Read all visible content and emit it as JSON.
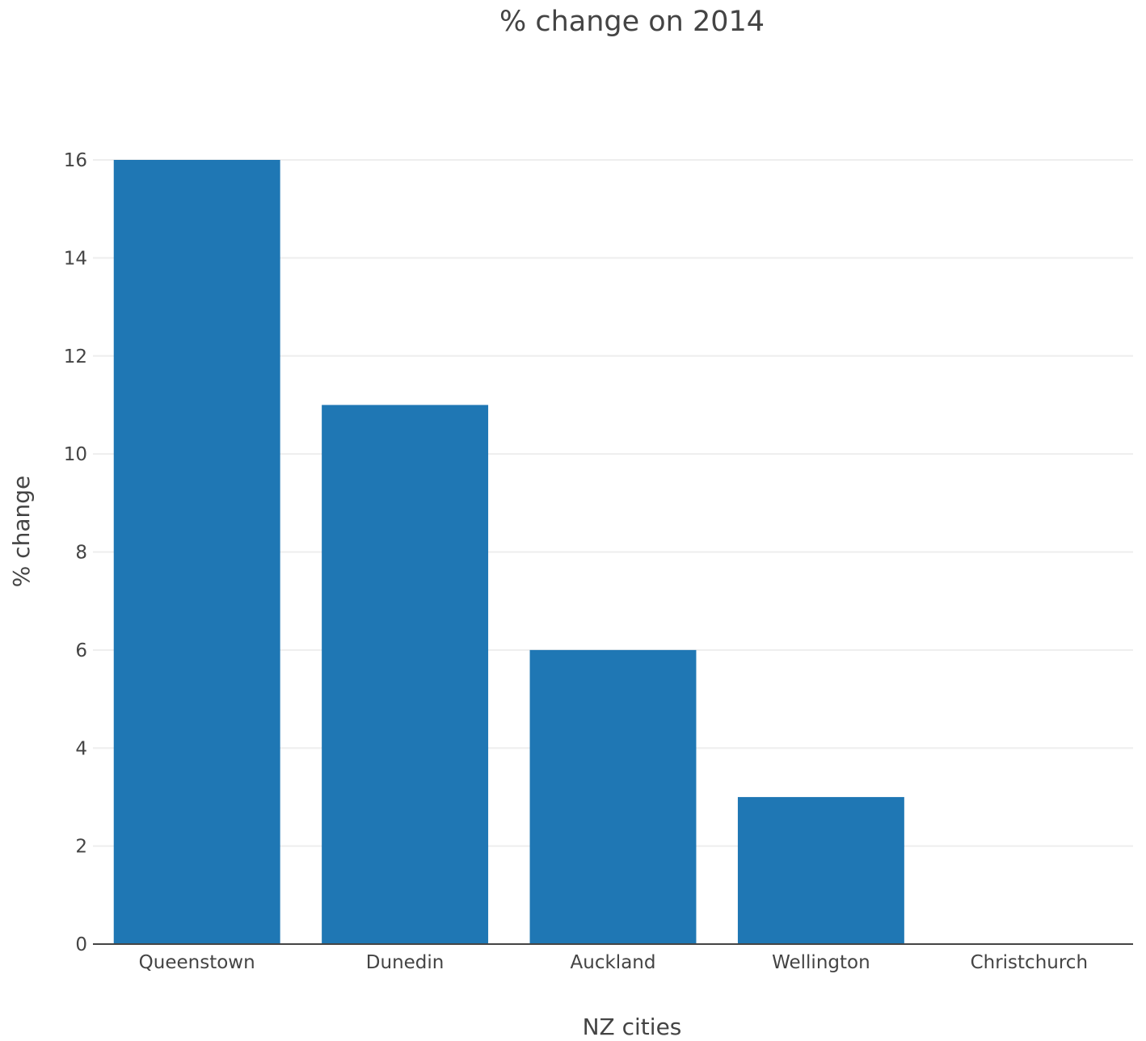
{
  "chart_data": {
    "type": "bar",
    "title": "% change on 2014",
    "xlabel": "NZ cities",
    "ylabel": "% change",
    "categories": [
      "Queenstown",
      "Dunedin",
      "Auckland",
      "Wellington",
      "Christchurch"
    ],
    "values": [
      16,
      11,
      6,
      3,
      0
    ],
    "ylim": [
      0,
      16
    ],
    "yticks": [
      "0",
      "2",
      "4",
      "6",
      "8",
      "10",
      "12",
      "14",
      "16"
    ],
    "bar_color": "#1f77b4",
    "grid": true,
    "legend": "none"
  }
}
